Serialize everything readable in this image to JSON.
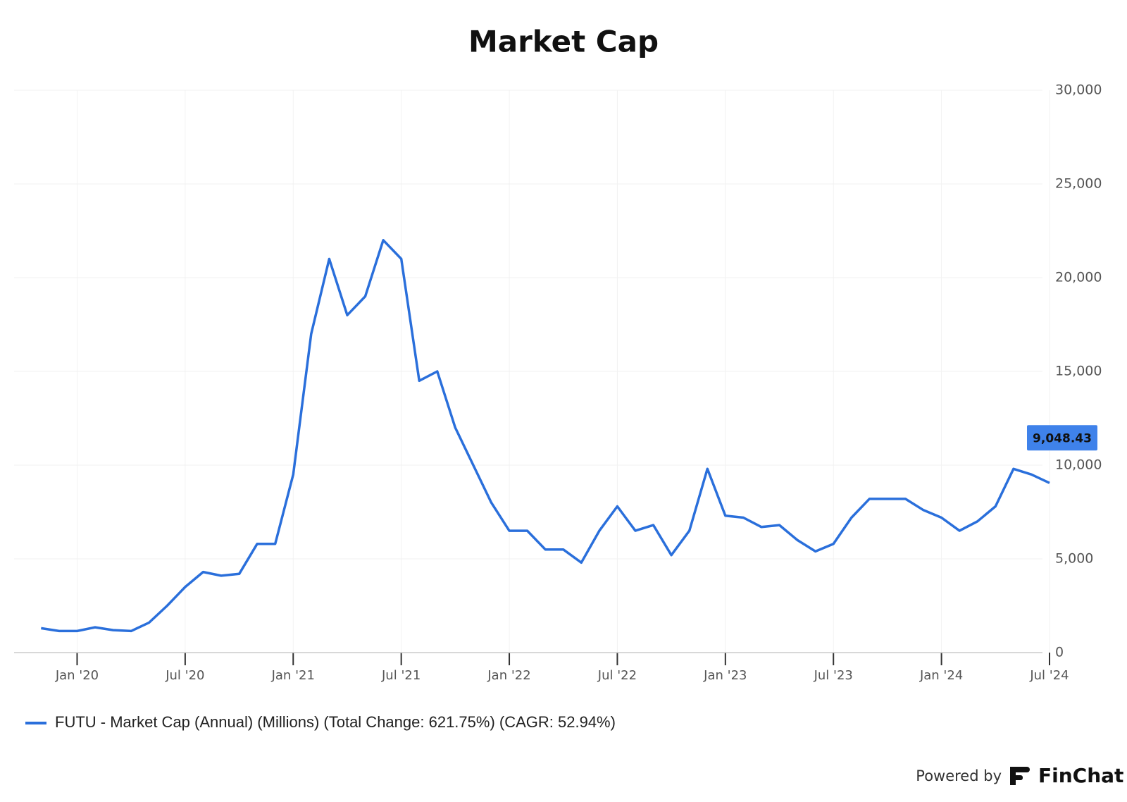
{
  "chart_data": {
    "type": "line",
    "title": "Market Cap",
    "x": [
      "2019-11",
      "2019-12",
      "2020-01",
      "2020-02",
      "2020-03",
      "2020-04",
      "2020-05",
      "2020-06",
      "2020-07",
      "2020-08",
      "2020-09",
      "2020-10",
      "2020-11",
      "2020-12",
      "2021-01",
      "2021-02",
      "2021-03",
      "2021-04",
      "2021-05",
      "2021-06",
      "2021-07",
      "2021-08",
      "2021-09",
      "2021-10",
      "2021-11",
      "2021-12",
      "2022-01",
      "2022-02",
      "2022-03",
      "2022-04",
      "2022-05",
      "2022-06",
      "2022-07",
      "2022-08",
      "2022-09",
      "2022-10",
      "2022-11",
      "2022-12",
      "2023-01",
      "2023-02",
      "2023-03",
      "2023-04",
      "2023-05",
      "2023-06",
      "2023-07",
      "2023-08",
      "2023-09",
      "2023-10",
      "2023-11",
      "2023-12",
      "2024-01",
      "2024-02",
      "2024-03",
      "2024-04",
      "2024-05",
      "2024-06",
      "2024-07"
    ],
    "series": [
      {
        "name": "FUTU - Market Cap (Annual) (Millions) (Total Change: 621.75%) (CAGR: 52.94%)",
        "color": "#2a6fdb",
        "values": [
          1300,
          1150,
          1150,
          1350,
          1200,
          1150,
          1600,
          2500,
          3500,
          4300,
          4100,
          4200,
          5800,
          5800,
          9500,
          17000,
          21000,
          18000,
          19000,
          22000,
          21000,
          14500,
          15000,
          12000,
          10000,
          8000,
          6500,
          6500,
          5500,
          5500,
          4800,
          6500,
          7800,
          6500,
          6800,
          5200,
          6500,
          9800,
          7300,
          7200,
          6700,
          6800,
          6000,
          5400,
          5800,
          7200,
          8200,
          8200,
          8200,
          7600,
          7200,
          6500,
          7000,
          7800,
          9800,
          9500,
          9048.43
        ],
        "value_labels": [
          null,
          null,
          null,
          null,
          null,
          null,
          null,
          null,
          null,
          null,
          null,
          null,
          null,
          null,
          null,
          null,
          null,
          null,
          null,
          null,
          null,
          null,
          null,
          null,
          null,
          null,
          null,
          null,
          null,
          null,
          null,
          null,
          null,
          null,
          null,
          null,
          null,
          null,
          null,
          null,
          null,
          null,
          null,
          null,
          null,
          null,
          null,
          null,
          null,
          null,
          null,
          null,
          null,
          null,
          null,
          null,
          "9,048.43"
        ]
      }
    ],
    "xlim": [
      "2019-10",
      "2024-07"
    ],
    "xticks": [
      {
        "value": "2020-01",
        "label": "Jan '20"
      },
      {
        "value": "2020-07",
        "label": "Jul '20"
      },
      {
        "value": "2021-01",
        "label": "Jan '21"
      },
      {
        "value": "2021-07",
        "label": "Jul '21"
      },
      {
        "value": "2022-01",
        "label": "Jan '22"
      },
      {
        "value": "2022-07",
        "label": "Jul '22"
      },
      {
        "value": "2023-01",
        "label": "Jan '23"
      },
      {
        "value": "2023-07",
        "label": "Jul '23"
      },
      {
        "value": "2024-01",
        "label": "Jan '24"
      },
      {
        "value": "2024-07",
        "label": "Jul '24"
      }
    ],
    "ylim": [
      0,
      30000
    ],
    "yticks": [
      0,
      {
        "value": 5000,
        "label": "5,000"
      },
      {
        "value": 10000,
        "label": "10,000"
      },
      {
        "value": 15000,
        "label": "15,000"
      },
      {
        "value": 20000,
        "label": "20,000"
      },
      {
        "value": 25000,
        "label": "25,000"
      },
      {
        "value": 30000,
        "label": "30,000"
      }
    ],
    "grid": true,
    "legend": "bottom-left",
    "footer": {
      "text": "Powered by",
      "brand": "FinChat"
    }
  }
}
